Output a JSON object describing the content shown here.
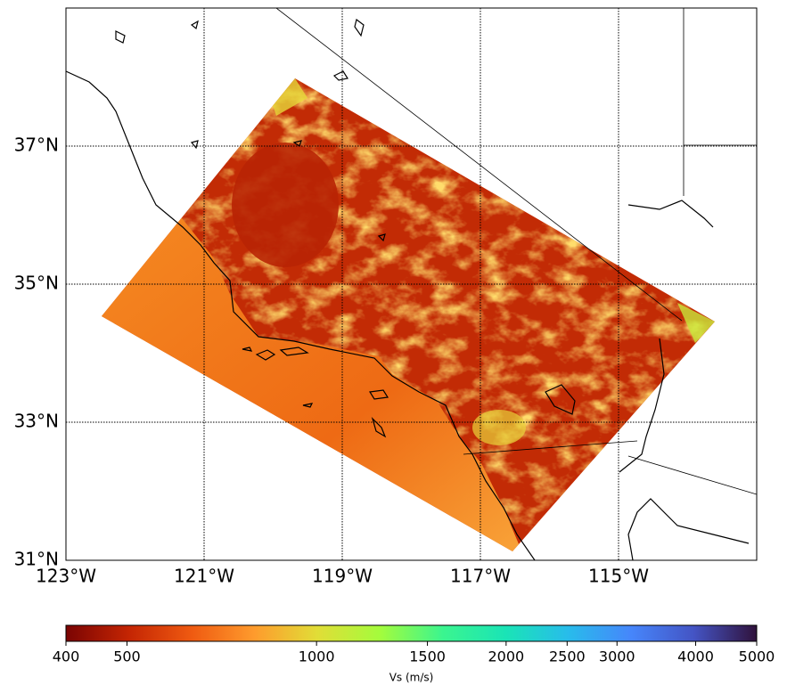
{
  "chart_data": {
    "type": "map",
    "xlim": [
      -123,
      -113
    ],
    "ylim": [
      31,
      39
    ],
    "xticks": [
      {
        "value": -123,
        "label": "123°W"
      },
      {
        "value": -121,
        "label": "121°W"
      },
      {
        "value": -119,
        "label": "119°W"
      },
      {
        "value": -117,
        "label": "117°W"
      },
      {
        "value": -115,
        "label": "115°W"
      }
    ],
    "yticks": [
      {
        "value": 31,
        "label": "31°N"
      },
      {
        "value": 33,
        "label": "33°N"
      },
      {
        "value": 35,
        "label": "35°N"
      },
      {
        "value": 37,
        "label": "37°N"
      }
    ],
    "grid": true,
    "colorbar": {
      "label": "Vs (m/s)",
      "lim": [
        400,
        5000
      ],
      "scale": "log",
      "ticks": [
        400,
        500,
        1000,
        1500,
        2000,
        2500,
        3000,
        4000,
        5000
      ],
      "colormap": [
        "#7a0403",
        "#c42503",
        "#ef5a11",
        "#fe9b2d",
        "#e1dd37",
        "#a4fc3c",
        "#3bf58f",
        "#1ae4b6",
        "#28bceb",
        "#4686fb",
        "#4454c4",
        "#30123b"
      ]
    }
  }
}
